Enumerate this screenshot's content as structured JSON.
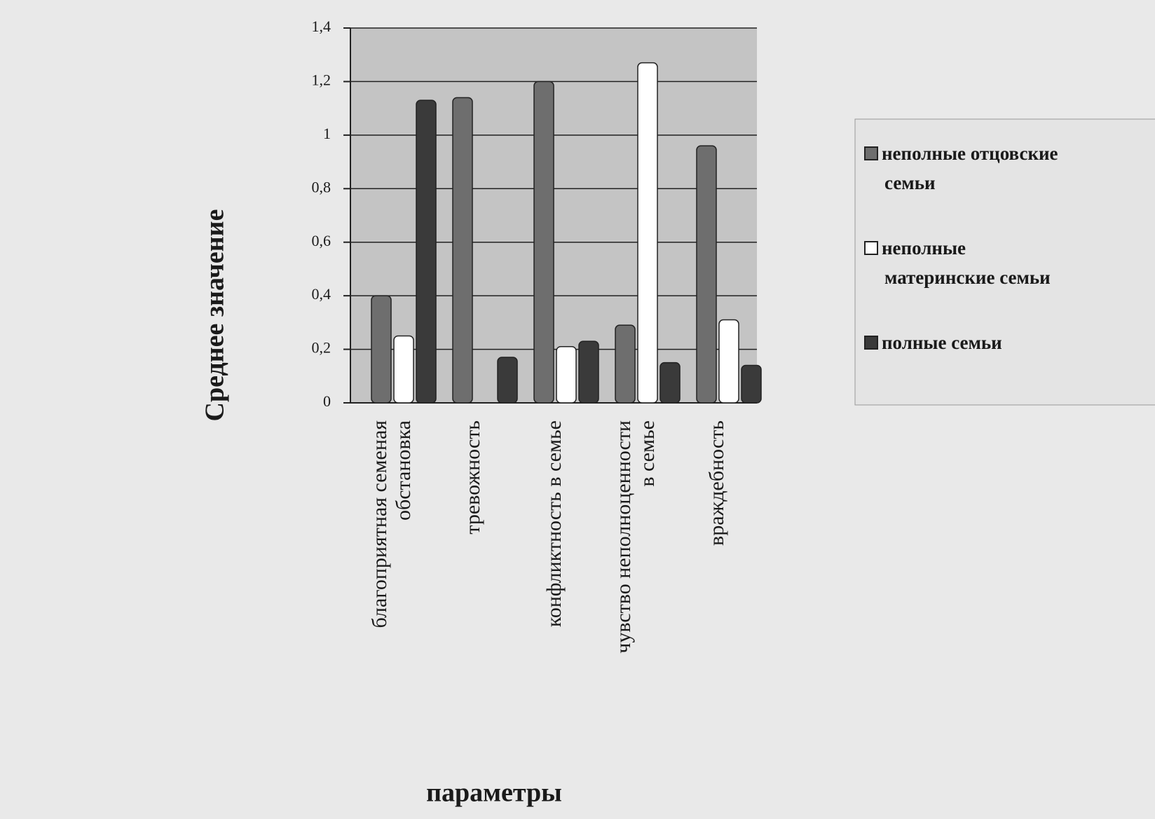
{
  "chart_data": {
    "type": "bar",
    "ylabel": "Среднее значение",
    "xlabel": "параметры",
    "categories": [
      "благоприятная семеная обстановка",
      "тревожность",
      "конфликтность в семье",
      "чувство неполноценности в семье",
      "враждебность"
    ],
    "series": [
      {
        "name": "неполные отцовские семьи",
        "color": "#6e6e6e",
        "values": [
          0.4,
          1.14,
          1.2,
          0.29,
          0.96
        ]
      },
      {
        "name": "неполные материнские семьи",
        "color": "#ffffff",
        "values": [
          0.25,
          0,
          0.21,
          1.27,
          0.31
        ]
      },
      {
        "name": "полные семьи",
        "color": "#3a3a3a",
        "values": [
          1.13,
          0.17,
          0.23,
          0.15,
          0.14
        ]
      }
    ],
    "ylim": [
      0,
      1.4
    ],
    "yticks": [
      0,
      {
        "value": 0.2,
        "label": "0,2"
      },
      {
        "value": 0.4,
        "label": "0,4"
      },
      {
        "value": 0.6,
        "label": "0,6"
      },
      {
        "value": 0.8,
        "label": "0,8"
      },
      1,
      {
        "value": 1.2,
        "label": "1,2"
      },
      {
        "value": 1.4,
        "label": "1,4"
      }
    ],
    "grid": true,
    "legend": "right"
  }
}
